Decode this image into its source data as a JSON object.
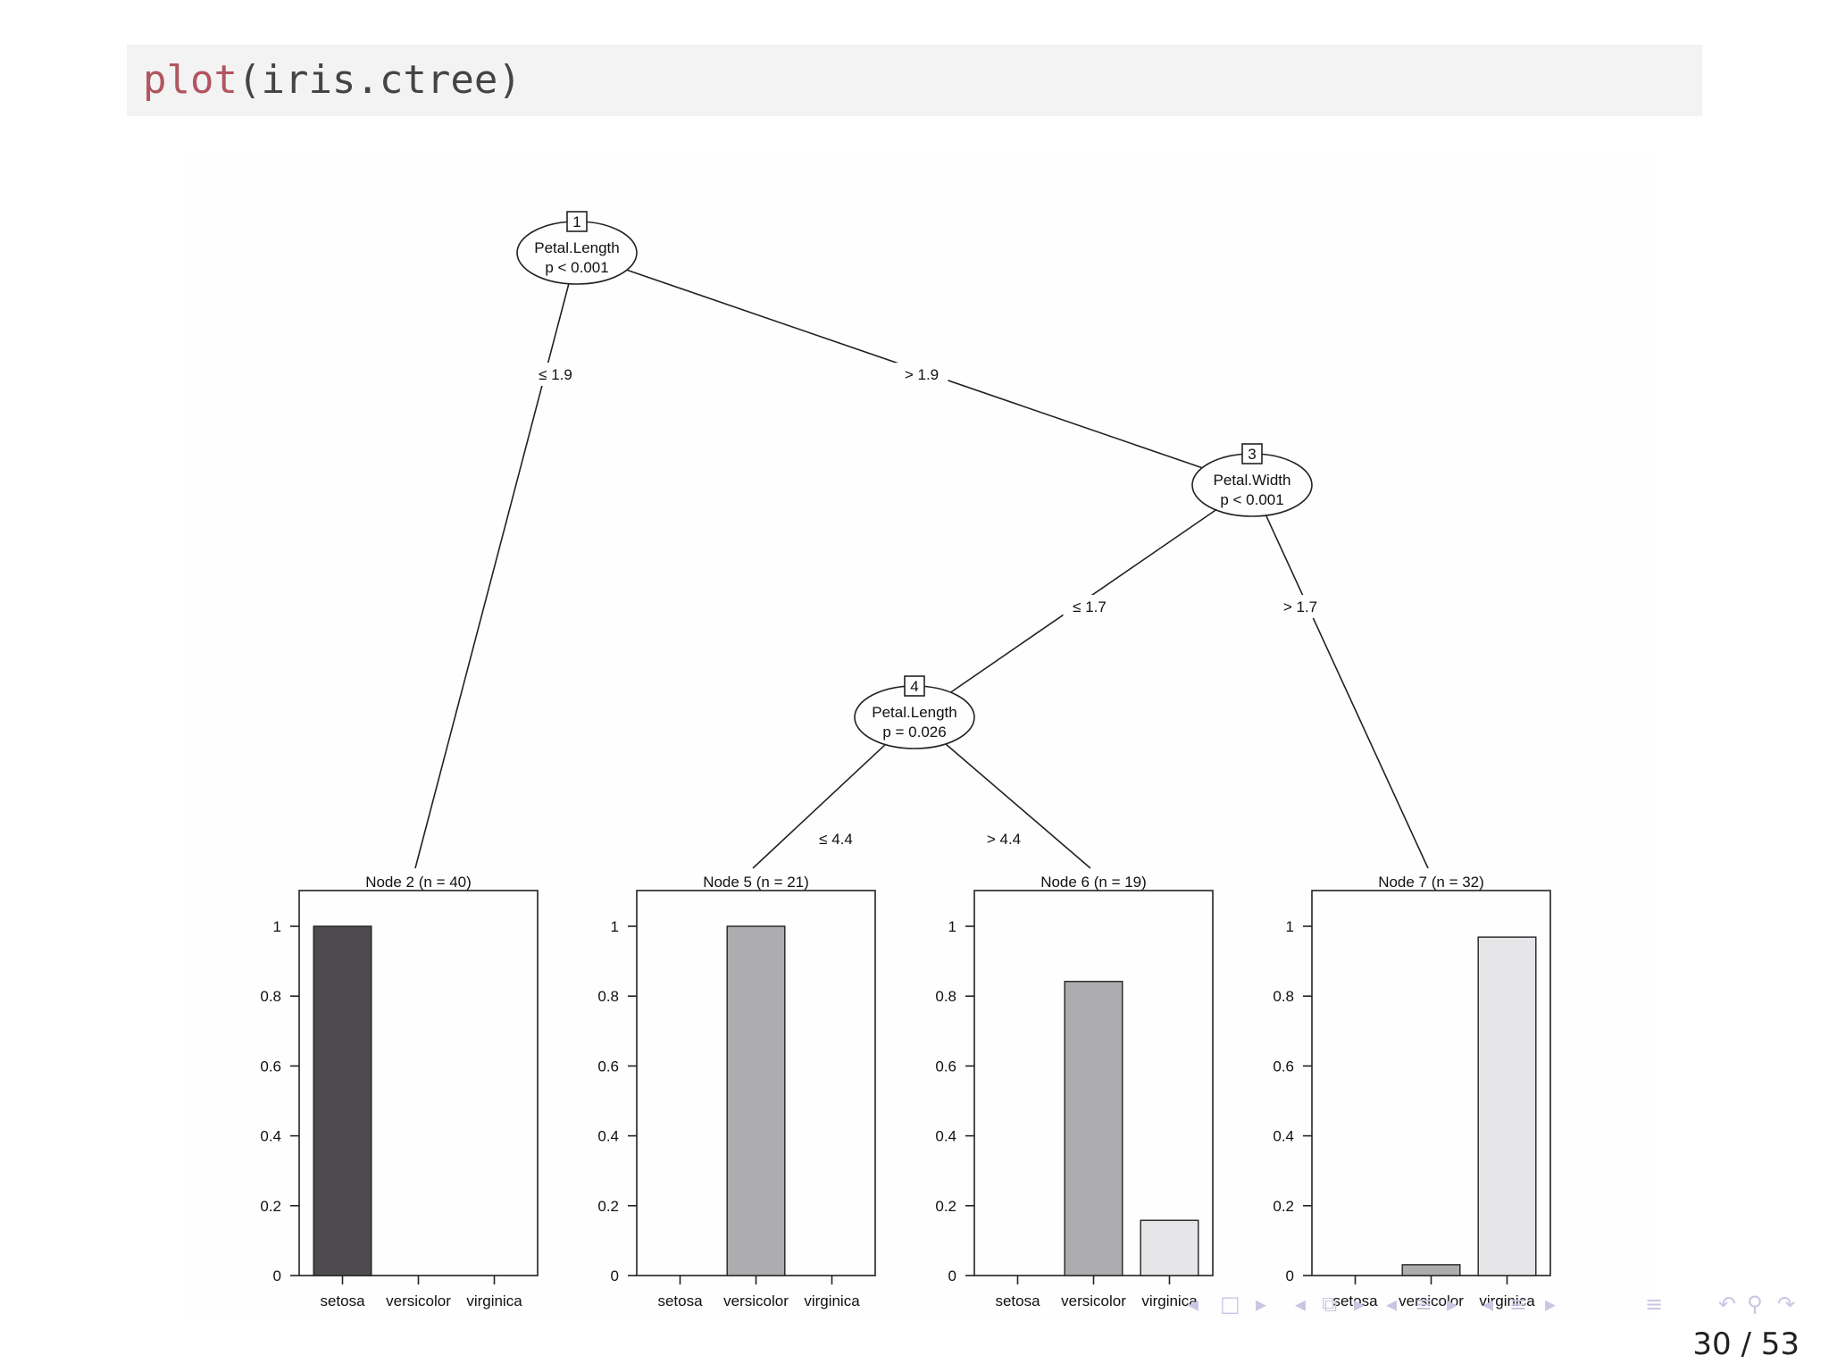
{
  "code": {
    "fn": "plot",
    "args": "(iris.ctree)"
  },
  "tree": {
    "inner_nodes": [
      {
        "id": "1",
        "variable": "Petal.Length",
        "pvalue": "p < 0.001"
      },
      {
        "id": "3",
        "variable": "Petal.Width",
        "pvalue": "p < 0.001"
      },
      {
        "id": "4",
        "variable": "Petal.Length",
        "pvalue": "p = 0.026"
      }
    ],
    "edges": [
      {
        "from": "1",
        "to": "2",
        "label": "≤ 1.9"
      },
      {
        "from": "1",
        "to": "3",
        "label": "> 1.9"
      },
      {
        "from": "3",
        "to": "4",
        "label": "≤ 1.7"
      },
      {
        "from": "3",
        "to": "7",
        "label": "> 1.7"
      },
      {
        "from": "4",
        "to": "5",
        "label": "≤ 4.4"
      },
      {
        "from": "4",
        "to": "6",
        "label": "> 4.4"
      }
    ]
  },
  "chart_data": [
    {
      "type": "bar",
      "title": "Node 2 (n = 40)",
      "categories": [
        "setosa",
        "versicolor",
        "virginica"
      ],
      "values": [
        1.0,
        0.0,
        0.0
      ],
      "ylim": [
        0,
        1
      ],
      "yticks": [
        "0",
        "0.2",
        "0.4",
        "0.6",
        "0.8",
        "1"
      ]
    },
    {
      "type": "bar",
      "title": "Node 5 (n = 21)",
      "categories": [
        "setosa",
        "versicolor",
        "virginica"
      ],
      "values": [
        0.0,
        1.0,
        0.0
      ],
      "ylim": [
        0,
        1
      ],
      "yticks": [
        "0",
        "0.2",
        "0.4",
        "0.6",
        "0.8",
        "1"
      ]
    },
    {
      "type": "bar",
      "title": "Node 6 (n = 19)",
      "categories": [
        "setosa",
        "versicolor",
        "virginica"
      ],
      "values": [
        0.0,
        0.842,
        0.158
      ],
      "ylim": [
        0,
        1
      ],
      "yticks": [
        "0",
        "0.2",
        "0.4",
        "0.6",
        "0.8",
        "1"
      ]
    },
    {
      "type": "bar",
      "title": "Node 7 (n = 32)",
      "categories": [
        "setosa",
        "versicolor",
        "virginica"
      ],
      "values": [
        0.0,
        0.031,
        0.969
      ],
      "ylim": [
        0,
        1
      ],
      "yticks": [
        "0",
        "0.2",
        "0.4",
        "0.6",
        "0.8",
        "1"
      ]
    }
  ],
  "bar_colors": [
    "#4d4b4e",
    "#adacae",
    "#e6e5e8"
  ],
  "footer": {
    "page": "30 / 53"
  }
}
